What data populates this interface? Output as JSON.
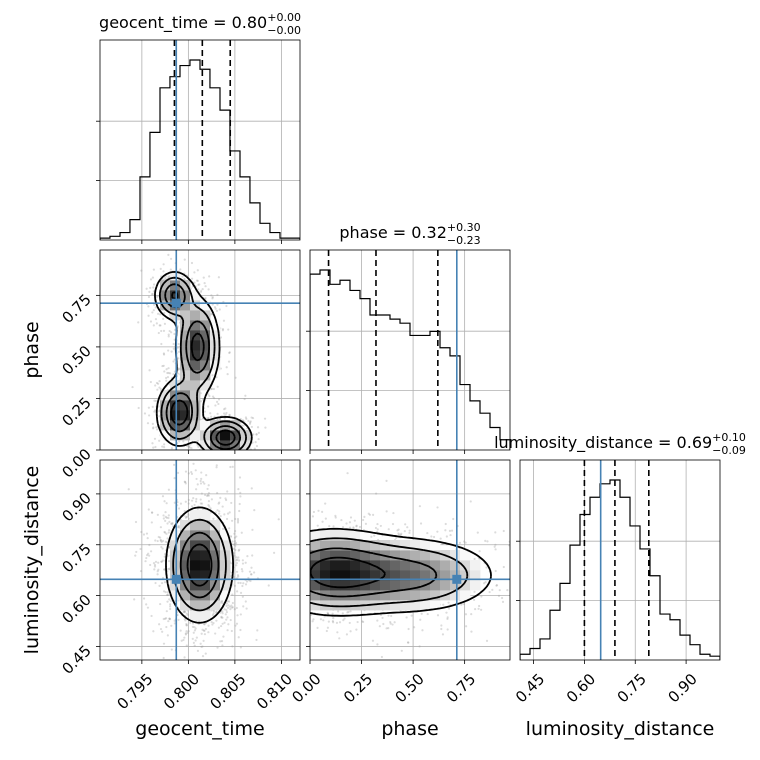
{
  "chart_data": {
    "type": "corner",
    "parameters": [
      "geocent_time",
      "phase",
      "luminosity_distance"
    ],
    "axis_labels": {
      "geocent_time": "geocent_time",
      "phase": "phase",
      "luminosity_distance": "luminosity_distance"
    },
    "titles": {
      "geocent_time": {
        "name": "geocent_time",
        "median": "0.80",
        "plus": "+0.00",
        "minus": "−0.00"
      },
      "phase": {
        "name": "phase",
        "median": "0.32",
        "plus": "+0.30",
        "minus": "−0.23"
      },
      "luminosity_distance": {
        "name": "luminosity_distance",
        "median": "0.69",
        "plus": "+0.10",
        "minus": "−0.09"
      }
    },
    "ranges": {
      "geocent_time": [
        0.7905,
        0.812
      ],
      "phase": [
        0.0,
        0.97
      ],
      "luminosity_distance": [
        0.41,
        1.0
      ]
    },
    "ticks": {
      "geocent_time": {
        "values": [
          0.795,
          0.8,
          0.805,
          0.81
        ],
        "labels": [
          "0.795",
          "0.800",
          "0.805",
          "0.810"
        ]
      },
      "phase": {
        "values": [
          0.0,
          0.25,
          0.5,
          0.75
        ],
        "labels": [
          "0.00",
          "0.25",
          "0.50",
          "0.75"
        ]
      },
      "luminosity_distance": {
        "values": [
          0.45,
          0.6,
          0.75,
          0.9
        ],
        "labels": [
          "0.45",
          "0.60",
          "0.75",
          "0.90"
        ]
      }
    },
    "truths": {
      "geocent_time": 0.7987,
      "phase": 0.712,
      "luminosity_distance": 0.648
    },
    "quantiles": {
      "geocent_time": [
        0.7985,
        0.8015,
        0.8045
      ],
      "phase": [
        0.09,
        0.32,
        0.62
      ],
      "luminosity_distance": [
        0.6,
        0.69,
        0.79
      ]
    },
    "histograms": {
      "geocent_time": {
        "edges": [
          0.7905,
          0.79157,
          0.79265,
          0.79372,
          0.7948,
          0.79587,
          0.79695,
          0.79802,
          0.7991,
          0.80017,
          0.80125,
          0.80232,
          0.8034,
          0.80447,
          0.80555,
          0.80662,
          0.8077,
          0.80877,
          0.80985,
          0.81092,
          0.812
        ],
        "counts": [
          1,
          2,
          4,
          11,
          34,
          58,
          82,
          88,
          94,
          97,
          92,
          82,
          70,
          48,
          34,
          20,
          9,
          4,
          1,
          1
        ]
      },
      "phase": {
        "edges": [
          0.0,
          0.0485,
          0.097,
          0.1455,
          0.194,
          0.2425,
          0.291,
          0.3395,
          0.388,
          0.4365,
          0.485,
          0.5335,
          0.582,
          0.6305,
          0.679,
          0.7275,
          0.776,
          0.8245,
          0.873,
          0.9215,
          0.97
        ],
        "counts": [
          86,
          88,
          81,
          83,
          78,
          74,
          66,
          66,
          64,
          62,
          56,
          56,
          58,
          50,
          46,
          32,
          24,
          18,
          11,
          5
        ]
      },
      "luminosity_distance": {
        "edges": [
          0.41,
          0.4395,
          0.469,
          0.4985,
          0.528,
          0.5575,
          0.587,
          0.6165,
          0.646,
          0.6755,
          0.705,
          0.7345,
          0.764,
          0.7935,
          0.823,
          0.8525,
          0.882,
          0.9115,
          0.941,
          0.9705,
          1.0
        ],
        "counts": [
          3,
          6,
          11,
          26,
          40,
          60,
          76,
          85,
          92,
          94,
          85,
          70,
          58,
          44,
          24,
          21,
          13,
          8,
          3,
          2
        ]
      }
    },
    "densities_2d": [
      {
        "x": "geocent_time",
        "y": "phase",
        "modes": [
          {
            "mx": 0.7985,
            "my": 0.75,
            "sx": 0.0011,
            "sy": 0.06,
            "w": 0.8
          },
          {
            "mx": 0.801,
            "my": 0.5,
            "sx": 0.0012,
            "sy": 0.12,
            "w": 0.9
          },
          {
            "mx": 0.799,
            "my": 0.18,
            "sx": 0.0012,
            "sy": 0.08,
            "w": 1.0
          },
          {
            "mx": 0.804,
            "my": 0.06,
            "sx": 0.0014,
            "sy": 0.05,
            "w": 1.0
          }
        ]
      },
      {
        "x": "geocent_time",
        "y": "luminosity_distance",
        "modes": [
          {
            "mx": 0.8012,
            "my": 0.69,
            "sx": 0.0018,
            "sy": 0.085,
            "w": 1.0
          }
        ]
      },
      {
        "x": "phase",
        "y": "luminosity_distance",
        "modes": [
          {
            "mx": 0.1,
            "my": 0.67,
            "sx": 0.18,
            "sy": 0.065,
            "w": 1.0
          },
          {
            "mx": 0.5,
            "my": 0.66,
            "sx": 0.22,
            "sy": 0.06,
            "w": 0.7
          }
        ]
      }
    ]
  }
}
